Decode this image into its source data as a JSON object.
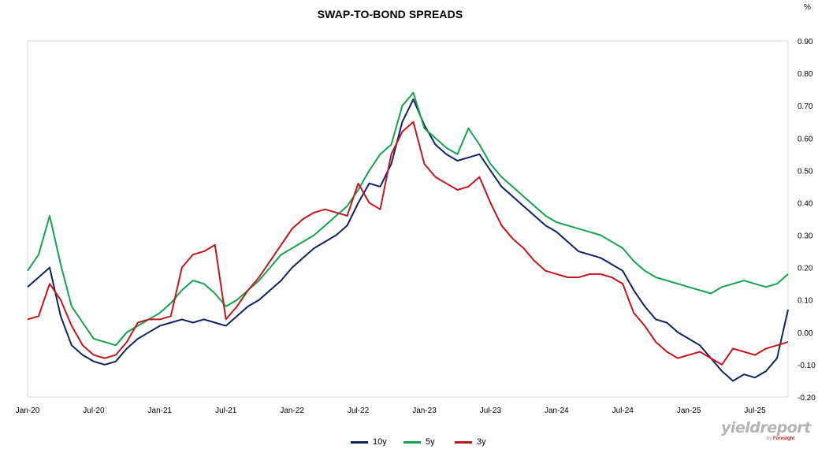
{
  "chart_data": {
    "type": "line",
    "title": "SWAP-TO-BOND SPREADS",
    "unit": "%",
    "xlabel": "",
    "ylabel": "",
    "ylim": [
      -0.2,
      0.9
    ],
    "y_ticks": [
      "0.90",
      "0.80",
      "0.70",
      "0.60",
      "0.50",
      "0.40",
      "0.30",
      "0.20",
      "0.10",
      "0.00",
      "-0.10",
      "-0.20"
    ],
    "y_tick_values": [
      0.9,
      0.8,
      0.7,
      0.6,
      0.5,
      0.4,
      0.3,
      0.2,
      0.1,
      0.0,
      -0.1,
      -0.2
    ],
    "x_ticks": [
      "Jan-20",
      "Jul-20",
      "Jan-21",
      "Jul-21",
      "Jan-22",
      "Jul-22",
      "Jan-23",
      "Jul-23",
      "Jan-24",
      "Jul-24",
      "Jan-25",
      "Jul-25"
    ],
    "x_tick_dates": [
      "2020-01",
      "2020-07",
      "2021-01",
      "2021-07",
      "2022-01",
      "2022-07",
      "2023-01",
      "2023-07",
      "2024-01",
      "2024-07",
      "2025-01",
      "2025-07"
    ],
    "xlim": [
      "2020-01",
      "2025-10"
    ],
    "grid": "horizontal-off",
    "legend": "bottom-center",
    "x": [
      "2020-01",
      "2020-02",
      "2020-03",
      "2020-04",
      "2020-05",
      "2020-06",
      "2020-07",
      "2020-08",
      "2020-09",
      "2020-10",
      "2020-11",
      "2020-12",
      "2021-01",
      "2021-02",
      "2021-03",
      "2021-04",
      "2021-05",
      "2021-06",
      "2021-07",
      "2021-08",
      "2021-09",
      "2021-10",
      "2021-11",
      "2021-12",
      "2022-01",
      "2022-02",
      "2022-03",
      "2022-04",
      "2022-05",
      "2022-06",
      "2022-07",
      "2022-08",
      "2022-09",
      "2022-10",
      "2022-11",
      "2022-12",
      "2023-01",
      "2023-02",
      "2023-03",
      "2023-04",
      "2023-05",
      "2023-06",
      "2023-07",
      "2023-08",
      "2023-09",
      "2023-10",
      "2023-11",
      "2023-12",
      "2024-01",
      "2024-02",
      "2024-03",
      "2024-04",
      "2024-05",
      "2024-06",
      "2024-07",
      "2024-08",
      "2024-09",
      "2024-10",
      "2024-11",
      "2024-12",
      "2025-01",
      "2025-02",
      "2025-03",
      "2025-04",
      "2025-05",
      "2025-06",
      "2025-07",
      "2025-08",
      "2025-09",
      "2025-10"
    ],
    "series": [
      {
        "name": "10y",
        "color": "#0d2366",
        "values": [
          0.14,
          0.17,
          0.2,
          0.05,
          -0.04,
          -0.07,
          -0.09,
          -0.1,
          -0.09,
          -0.05,
          -0.02,
          0.0,
          0.02,
          0.03,
          0.04,
          0.03,
          0.04,
          0.03,
          0.02,
          0.05,
          0.08,
          0.1,
          0.13,
          0.16,
          0.2,
          0.23,
          0.26,
          0.28,
          0.3,
          0.33,
          0.4,
          0.46,
          0.45,
          0.52,
          0.65,
          0.72,
          0.64,
          0.58,
          0.55,
          0.53,
          0.54,
          0.55,
          0.5,
          0.45,
          0.42,
          0.39,
          0.36,
          0.33,
          0.31,
          0.28,
          0.25,
          0.24,
          0.23,
          0.21,
          0.19,
          0.13,
          0.08,
          0.04,
          0.03,
          0.0,
          -0.02,
          -0.04,
          -0.08,
          -0.12,
          -0.15,
          -0.13,
          -0.14,
          -0.12,
          -0.08,
          0.07
        ]
      },
      {
        "name": "5y",
        "color": "#13a34c",
        "values": [
          0.19,
          0.24,
          0.36,
          0.21,
          0.08,
          0.03,
          -0.02,
          -0.03,
          -0.04,
          0.0,
          0.02,
          0.04,
          0.06,
          0.09,
          0.13,
          0.16,
          0.15,
          0.12,
          0.08,
          0.1,
          0.13,
          0.16,
          0.2,
          0.24,
          0.26,
          0.28,
          0.3,
          0.33,
          0.36,
          0.39,
          0.44,
          0.5,
          0.55,
          0.58,
          0.7,
          0.74,
          0.63,
          0.6,
          0.57,
          0.55,
          0.63,
          0.58,
          0.52,
          0.48,
          0.45,
          0.42,
          0.39,
          0.36,
          0.34,
          0.33,
          0.32,
          0.31,
          0.3,
          0.28,
          0.26,
          0.22,
          0.19,
          0.17,
          0.16,
          0.15,
          0.14,
          0.13,
          0.12,
          0.14,
          0.15,
          0.16,
          0.15,
          0.14,
          0.15,
          0.18
        ]
      },
      {
        "name": "3y",
        "color": "#c0161c",
        "values": [
          0.04,
          0.05,
          0.15,
          0.1,
          0.02,
          -0.04,
          -0.07,
          -0.08,
          -0.07,
          -0.03,
          0.03,
          0.04,
          0.04,
          0.05,
          0.2,
          0.24,
          0.25,
          0.27,
          0.04,
          0.08,
          0.13,
          0.17,
          0.22,
          0.27,
          0.32,
          0.35,
          0.37,
          0.38,
          0.37,
          0.36,
          0.46,
          0.4,
          0.38,
          0.55,
          0.62,
          0.65,
          0.52,
          0.48,
          0.46,
          0.44,
          0.45,
          0.48,
          0.4,
          0.33,
          0.29,
          0.26,
          0.22,
          0.19,
          0.18,
          0.17,
          0.17,
          0.18,
          0.18,
          0.17,
          0.15,
          0.06,
          0.02,
          -0.03,
          -0.06,
          -0.08,
          -0.07,
          -0.06,
          -0.08,
          -0.1,
          -0.05,
          -0.06,
          -0.07,
          -0.05,
          -0.04,
          -0.03
        ]
      }
    ]
  },
  "brand": {
    "logo_text": "yieldreport",
    "logo_sub_prefix": "by",
    "logo_sub_brand": "Foresight"
  }
}
